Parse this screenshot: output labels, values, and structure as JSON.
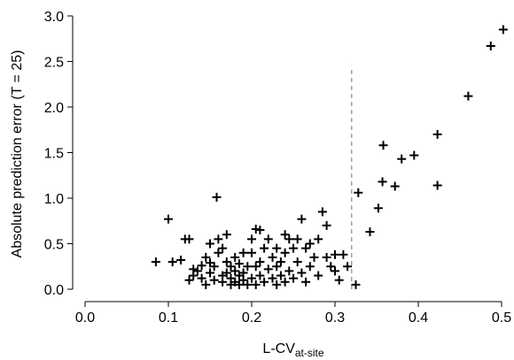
{
  "chart_data": {
    "type": "scatter",
    "title": "",
    "xlabel": "L-CV",
    "xlabel_subscript": "at-site",
    "ylabel": "Absolute prediction error (T = 25)",
    "xlim": [
      0.0,
      0.5
    ],
    "ylim": [
      0.0,
      3.0
    ],
    "x_ticks": [
      "0.0",
      "0.1",
      "0.2",
      "0.3",
      "0.4",
      "0.5"
    ],
    "y_ticks": [
      "0.0",
      "0.5",
      "1.0",
      "1.5",
      "2.0",
      "2.5",
      "3.0"
    ],
    "grid": false,
    "marker": "plus",
    "threshold_x": 0.32,
    "threshold_y_max": 2.45,
    "points": [
      [
        0.085,
        0.3
      ],
      [
        0.1,
        0.77
      ],
      [
        0.105,
        0.3
      ],
      [
        0.115,
        0.32
      ],
      [
        0.12,
        0.55
      ],
      [
        0.125,
        0.55
      ],
      [
        0.125,
        0.1
      ],
      [
        0.13,
        0.22
      ],
      [
        0.13,
        0.15
      ],
      [
        0.135,
        0.2
      ],
      [
        0.14,
        0.26
      ],
      [
        0.14,
        0.12
      ],
      [
        0.145,
        0.35
      ],
      [
        0.145,
        0.05
      ],
      [
        0.15,
        0.29
      ],
      [
        0.15,
        0.18
      ],
      [
        0.15,
        0.5
      ],
      [
        0.155,
        0.1
      ],
      [
        0.155,
        0.25
      ],
      [
        0.158,
        1.01
      ],
      [
        0.16,
        0.4
      ],
      [
        0.16,
        0.55
      ],
      [
        0.165,
        0.15
      ],
      [
        0.165,
        0.45
      ],
      [
        0.165,
        0.08
      ],
      [
        0.17,
        0.6
      ],
      [
        0.17,
        0.3
      ],
      [
        0.17,
        0.18
      ],
      [
        0.175,
        0.12
      ],
      [
        0.175,
        0.25
      ],
      [
        0.175,
        0.05
      ],
      [
        0.18,
        0.35
      ],
      [
        0.18,
        0.08
      ],
      [
        0.18,
        0.2
      ],
      [
        0.185,
        0.15
      ],
      [
        0.185,
        0.05
      ],
      [
        0.185,
        0.28
      ],
      [
        0.19,
        0.4
      ],
      [
        0.19,
        0.1
      ],
      [
        0.19,
        0.18
      ],
      [
        0.195,
        0.25
      ],
      [
        0.195,
        0.05
      ],
      [
        0.2,
        0.4
      ],
      [
        0.2,
        0.55
      ],
      [
        0.2,
        0.12
      ],
      [
        0.205,
        0.66
      ],
      [
        0.205,
        0.25
      ],
      [
        0.205,
        0.05
      ],
      [
        0.21,
        0.65
      ],
      [
        0.21,
        0.3
      ],
      [
        0.21,
        0.15
      ],
      [
        0.215,
        0.45
      ],
      [
        0.215,
        0.08
      ],
      [
        0.22,
        0.55
      ],
      [
        0.22,
        0.22
      ],
      [
        0.225,
        0.35
      ],
      [
        0.225,
        0.12
      ],
      [
        0.23,
        0.45
      ],
      [
        0.23,
        0.25
      ],
      [
        0.23,
        0.05
      ],
      [
        0.235,
        0.3
      ],
      [
        0.235,
        0.15
      ],
      [
        0.24,
        0.6
      ],
      [
        0.24,
        0.4
      ],
      [
        0.24,
        0.08
      ],
      [
        0.245,
        0.55
      ],
      [
        0.245,
        0.2
      ],
      [
        0.25,
        0.45
      ],
      [
        0.25,
        0.12
      ],
      [
        0.255,
        0.55
      ],
      [
        0.255,
        0.3
      ],
      [
        0.26,
        0.77
      ],
      [
        0.26,
        0.18
      ],
      [
        0.265,
        0.45
      ],
      [
        0.265,
        0.08
      ],
      [
        0.27,
        0.5
      ],
      [
        0.27,
        0.25
      ],
      [
        0.275,
        0.35
      ],
      [
        0.28,
        0.55
      ],
      [
        0.28,
        0.15
      ],
      [
        0.285,
        0.85
      ],
      [
        0.29,
        0.7
      ],
      [
        0.29,
        0.35
      ],
      [
        0.295,
        0.25
      ],
      [
        0.3,
        0.2
      ],
      [
        0.3,
        0.38
      ],
      [
        0.305,
        0.1
      ],
      [
        0.31,
        0.38
      ],
      [
        0.315,
        0.25
      ],
      [
        0.325,
        0.05
      ],
      [
        0.328,
        1.06
      ],
      [
        0.342,
        0.63
      ],
      [
        0.352,
        0.89
      ],
      [
        0.357,
        1.18
      ],
      [
        0.358,
        1.58
      ],
      [
        0.372,
        1.13
      ],
      [
        0.38,
        1.43
      ],
      [
        0.395,
        1.47
      ],
      [
        0.423,
        1.7
      ],
      [
        0.423,
        1.14
      ],
      [
        0.46,
        2.12
      ],
      [
        0.487,
        2.67
      ],
      [
        0.502,
        2.85
      ]
    ]
  }
}
